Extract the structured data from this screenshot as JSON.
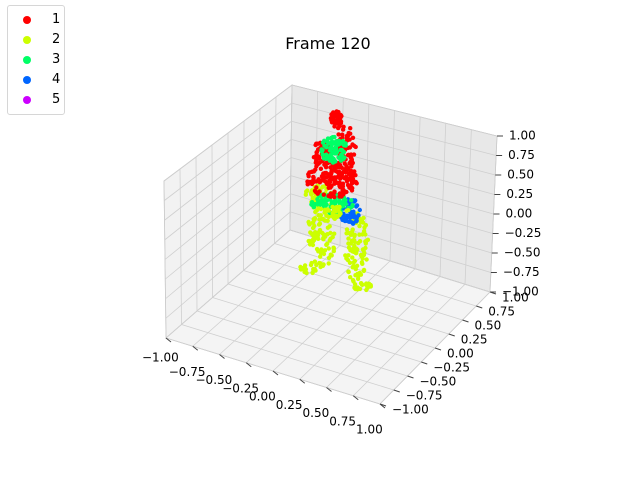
{
  "chart_data": {
    "type": "scatter",
    "title": "Frame 120",
    "xlim": [
      -1.0,
      1.0
    ],
    "ylim": [
      -1.0,
      1.0
    ],
    "zlim": [
      -1.0,
      1.0
    ],
    "grid": true,
    "legend_placement": "upper-left",
    "ticks": {
      "x": [
        "−1.00",
        "−0.75",
        "−0.50",
        "−0.25",
        "0.00",
        "0.25",
        "0.50",
        "0.75",
        "1.00"
      ],
      "y": [
        "−1.00",
        "−0.75",
        "−0.50",
        "−0.25",
        "0.00",
        "0.25",
        "0.50",
        "0.75",
        "1.00"
      ],
      "z": [
        "−1.00",
        "−0.75",
        "−0.50",
        "−0.25",
        "0.00",
        "0.25",
        "0.50",
        "0.75",
        "1.00"
      ]
    },
    "series": [
      {
        "name": "1",
        "color": "#ff0000"
      },
      {
        "name": "2",
        "color": "#ccff00"
      },
      {
        "name": "3",
        "color": "#00ff66"
      },
      {
        "name": "4",
        "color": "#0066ff"
      },
      {
        "name": "5",
        "color": "#cc00ff"
      }
    ]
  }
}
